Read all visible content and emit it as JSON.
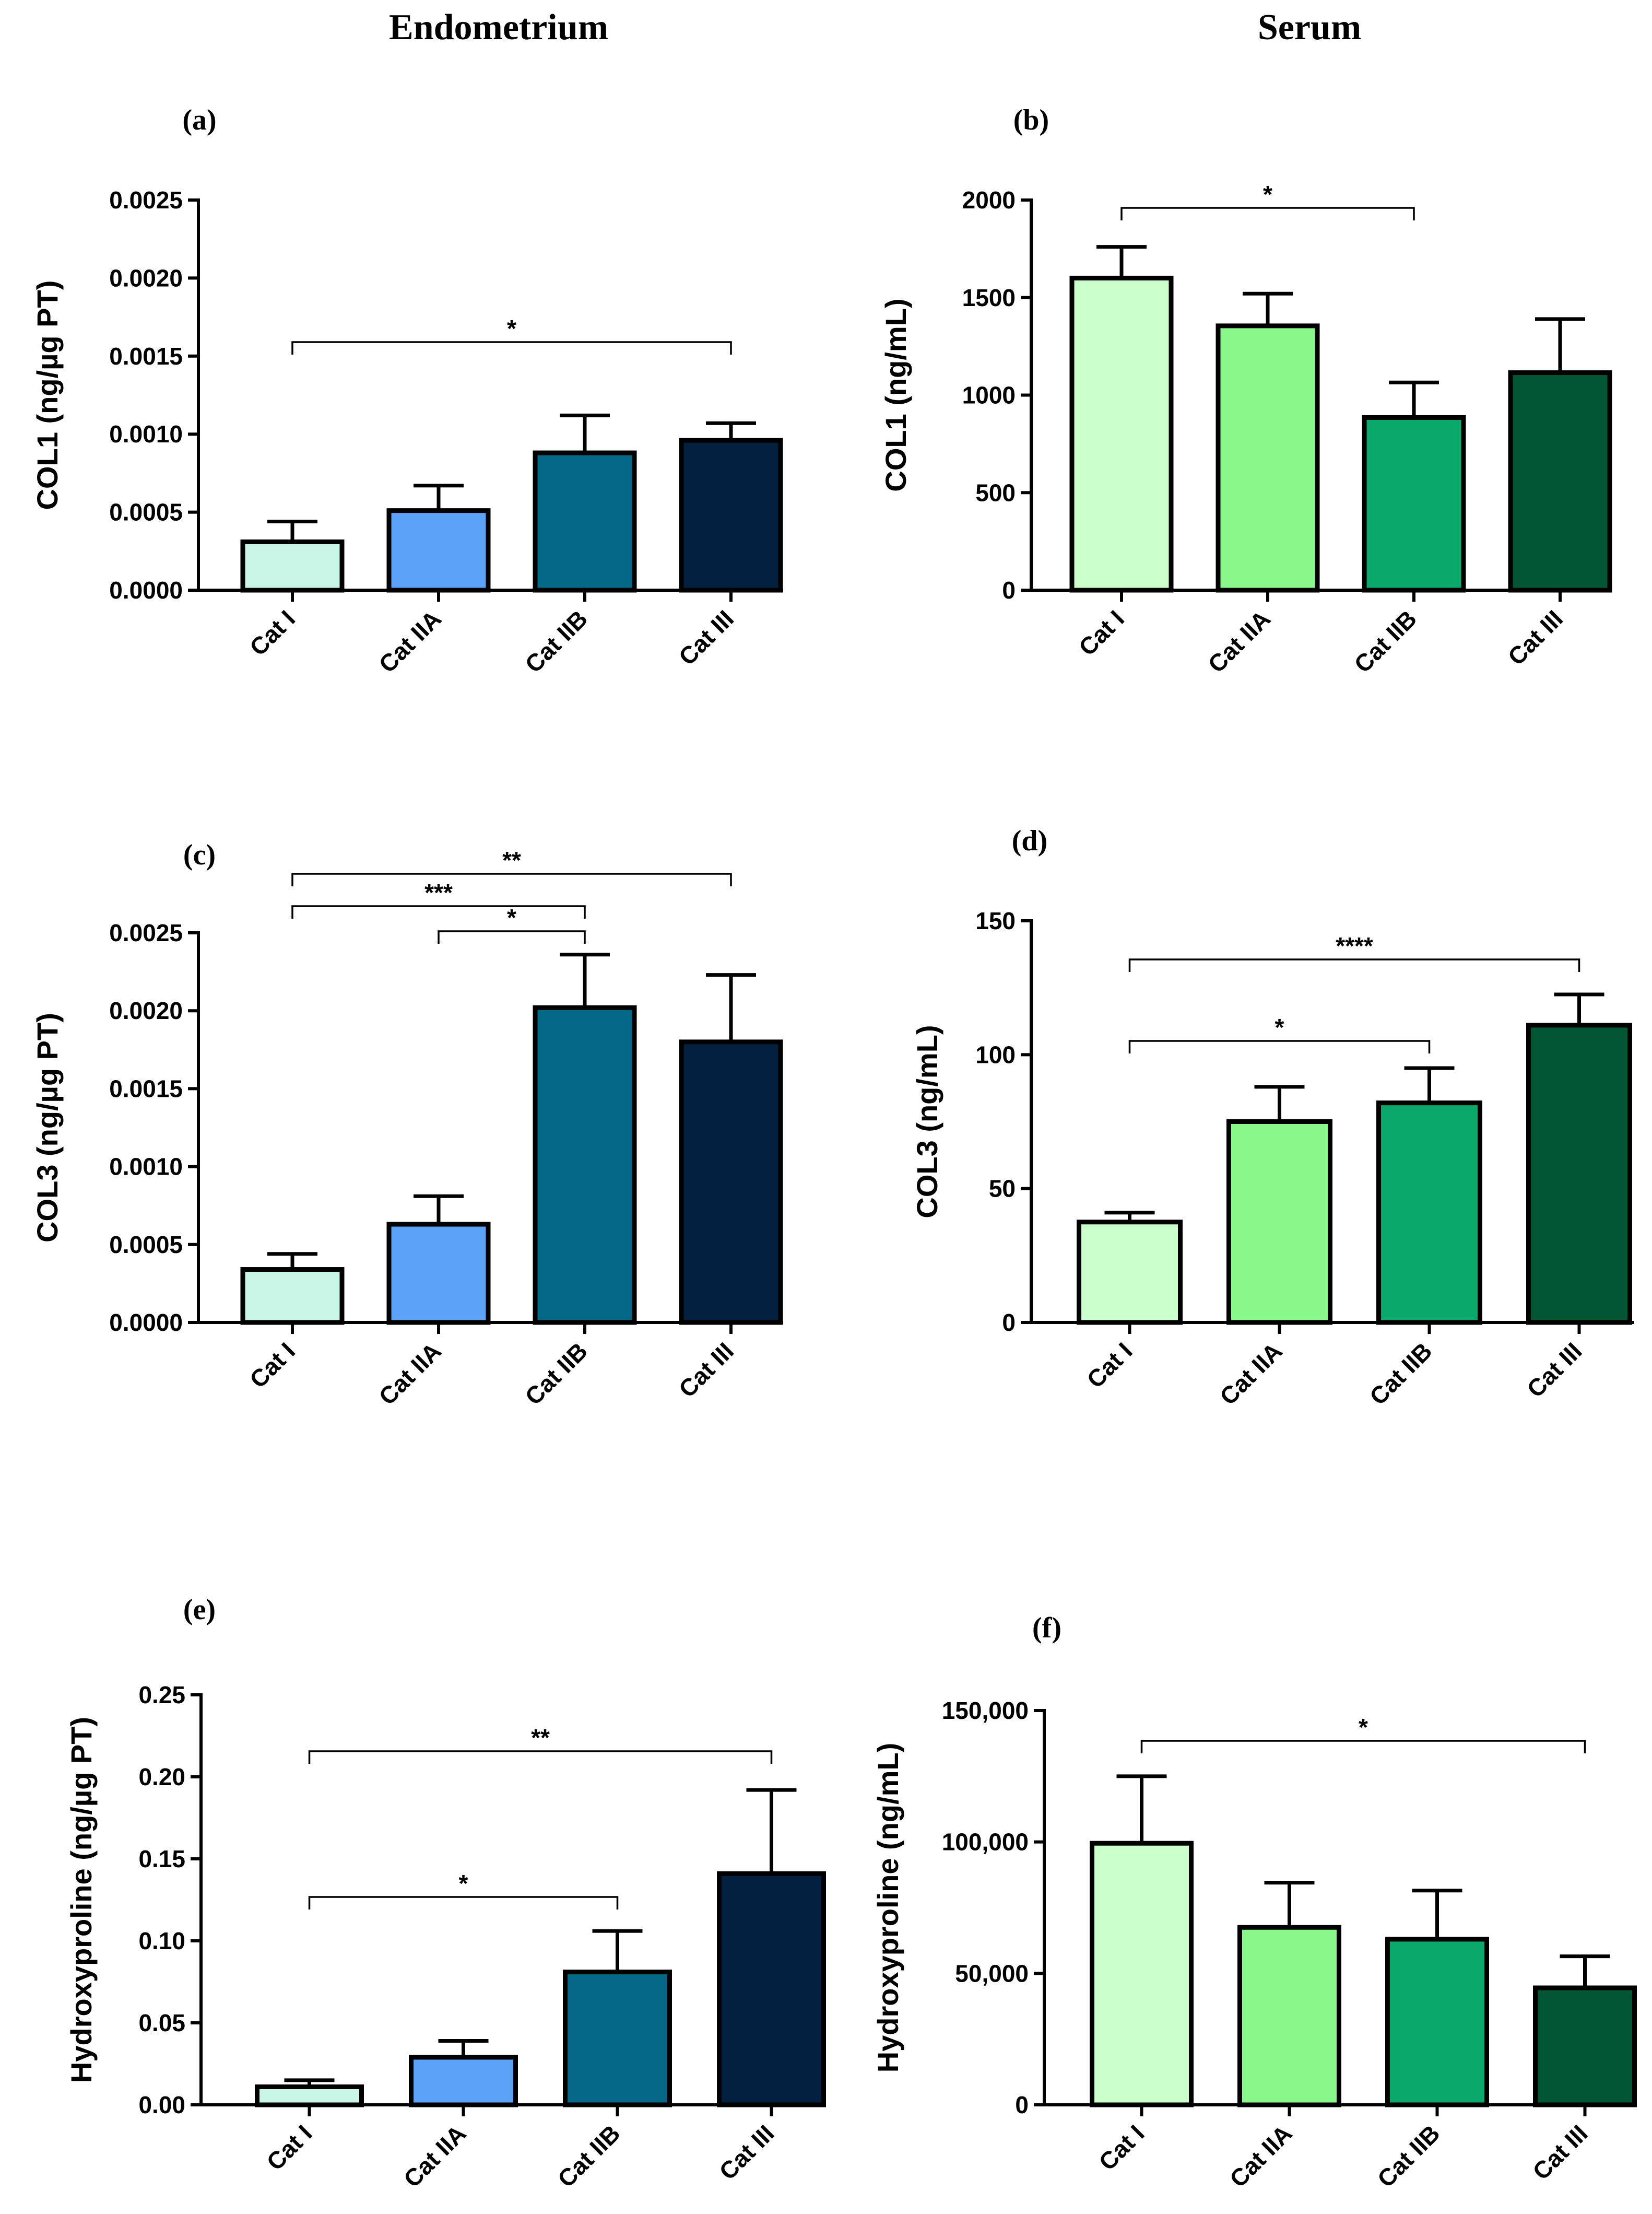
{
  "column_titles": {
    "left": "Endometrium",
    "right": "Serum"
  },
  "colors": {
    "endometrium": [
      "#c8f5e6",
      "#5aa2f8",
      "#066887",
      "#02203f"
    ],
    "serum": [
      "#cbffcb",
      "#8af78a",
      "#0aa86a",
      "#035633"
    ]
  },
  "chart_data": [
    {
      "panel": "(a)",
      "type": "bar",
      "ylabel": "COL1 (ng/µg PT)",
      "categories": [
        "Cat I",
        "Cat IIA",
        "Cat IIB",
        "Cat III"
      ],
      "values": [
        0.00031,
        0.00051,
        0.00088,
        0.00096
      ],
      "errors": [
        0.00013,
        0.00016,
        0.00024,
        0.00011
      ],
      "ylim": [
        0,
        0.0025
      ],
      "yticks": [
        "0.0000",
        "0.0005",
        "0.0010",
        "0.0015",
        "0.0020",
        "0.0025"
      ],
      "significance": [
        {
          "from": 0,
          "to": 3,
          "label": "*"
        }
      ]
    },
    {
      "panel": "(b)",
      "type": "bar",
      "ylabel": "COL1 (ng/mL)",
      "categories": [
        "Cat I",
        "Cat IIA",
        "Cat IIB",
        "Cat III"
      ],
      "values": [
        1600,
        1355,
        885,
        1115
      ],
      "errors": [
        160,
        165,
        180,
        275
      ],
      "ylim": [
        0,
        2000
      ],
      "yticks": [
        "0",
        "500",
        "1000",
        "1500",
        "2000"
      ],
      "significance": [
        {
          "from": 0,
          "to": 2,
          "label": "*"
        }
      ]
    },
    {
      "panel": "(c)",
      "type": "bar",
      "ylabel": "COL3 (ng/µg PT)",
      "categories": [
        "Cat I",
        "Cat IIA",
        "Cat IIB",
        "Cat III"
      ],
      "values": [
        0.00034,
        0.00063,
        0.00202,
        0.0018
      ],
      "errors": [
        0.0001,
        0.00018,
        0.00034,
        0.00043
      ],
      "ylim": [
        0,
        0.0025
      ],
      "yticks": [
        "0.0000",
        "0.0005",
        "0.0010",
        "0.0015",
        "0.0020",
        "0.0025"
      ],
      "significance": [
        {
          "from": 0,
          "to": 3,
          "label": "**"
        },
        {
          "from": 0,
          "to": 2,
          "label": "***"
        },
        {
          "from": 1,
          "to": 2,
          "label": "*"
        }
      ]
    },
    {
      "panel": "(d)",
      "type": "bar",
      "ylabel": "COL3 (ng/mL)",
      "categories": [
        "Cat I",
        "Cat IIA",
        "Cat IIB",
        "Cat III"
      ],
      "values": [
        37.5,
        75,
        82,
        111
      ],
      "errors": [
        3.5,
        13,
        13,
        11.5
      ],
      "ylim": [
        0,
        150
      ],
      "yticks": [
        "0",
        "50",
        "100",
        "150"
      ],
      "significance": [
        {
          "from": 0,
          "to": 3,
          "label": "****"
        },
        {
          "from": 0,
          "to": 2,
          "label": "*"
        }
      ]
    },
    {
      "panel": "(e)",
      "type": "bar",
      "ylabel": "Hydroxyproline (ng/µg PT)",
      "categories": [
        "Cat I",
        "Cat IIA",
        "Cat IIB",
        "Cat III"
      ],
      "values": [
        0.011,
        0.029,
        0.081,
        0.141
      ],
      "errors": [
        0.004,
        0.01,
        0.025,
        0.051
      ],
      "ylim": [
        0,
        0.25
      ],
      "yticks": [
        "0.00",
        "0.05",
        "0.10",
        "0.15",
        "0.20",
        "0.25"
      ],
      "significance": [
        {
          "from": 0,
          "to": 3,
          "label": "**"
        },
        {
          "from": 0,
          "to": 2,
          "label": "*"
        }
      ]
    },
    {
      "panel": "(f)",
      "type": "bar",
      "ylabel": "Hydroxyproline (ng/mL)",
      "categories": [
        "Cat I",
        "Cat IIA",
        "Cat IIB",
        "Cat III"
      ],
      "values": [
        99500,
        67500,
        63000,
        44500
      ],
      "errors": [
        25500,
        17000,
        18500,
        12000
      ],
      "ylim": [
        0,
        150000
      ],
      "yticks": [
        "0",
        "50,000",
        "100,000",
        "150,000"
      ],
      "significance": [
        {
          "from": 0,
          "to": 3,
          "label": "*"
        }
      ]
    }
  ]
}
